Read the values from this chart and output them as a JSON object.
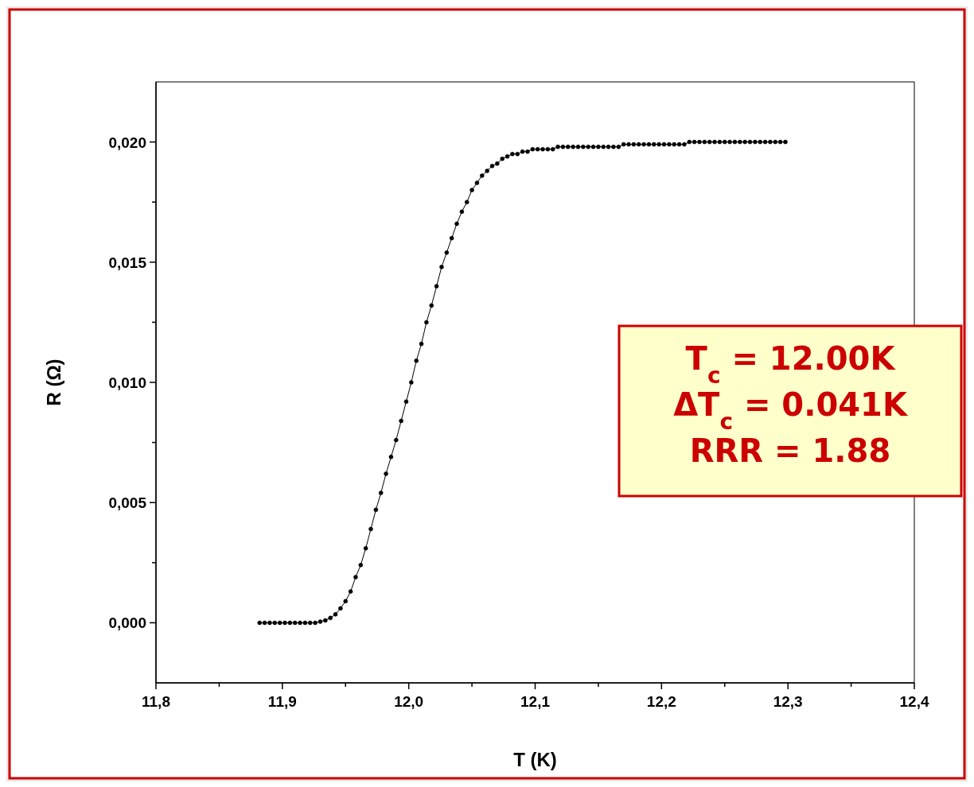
{
  "chart_data": {
    "type": "line",
    "xlabel": "T (K)",
    "ylabel": "R (Ω)",
    "marker": "circle",
    "line_style": "solid",
    "grid": false,
    "annotations": [
      "T$_{c}$ = 12.00K",
      "ΔT$_{c}$ = 0.041K",
      "RRR = 1.88"
    ],
    "xlim": [
      11.8,
      12.4
    ],
    "ylim": [
      -0.0025,
      0.0225
    ],
    "xticks": [
      {
        "value": 11.8,
        "label": "11,8"
      },
      {
        "value": 11.85,
        "label": null
      },
      {
        "value": 11.9,
        "label": "11,9"
      },
      {
        "value": 11.95,
        "label": null
      },
      {
        "value": 12.0,
        "label": "12,0"
      },
      {
        "value": 12.05,
        "label": null
      },
      {
        "value": 12.1,
        "label": "12,1"
      },
      {
        "value": 12.15,
        "label": null
      },
      {
        "value": 12.2,
        "label": "12,2"
      },
      {
        "value": 12.25,
        "label": null
      },
      {
        "value": 12.3,
        "label": "12,3"
      },
      {
        "value": 12.35,
        "label": null
      },
      {
        "value": 12.4,
        "label": "12,4"
      }
    ],
    "yticks": [
      {
        "value": 0,
        "label": "0,000"
      },
      {
        "value": 0.0025,
        "label": null
      },
      {
        "value": 0.005,
        "label": "0,005"
      },
      {
        "value": 0.0075,
        "label": null
      },
      {
        "value": 0.01,
        "label": "0,010"
      },
      {
        "value": 0.0125,
        "label": null
      },
      {
        "value": 0.015,
        "label": "0,015"
      },
      {
        "value": 0.0175,
        "label": null
      },
      {
        "value": 0.02,
        "label": "0,020"
      }
    ],
    "series": [
      {
        "color": "#000000",
        "x": [
          11.882,
          11.886,
          11.89,
          11.894,
          11.898,
          11.902,
          11.906,
          11.91,
          11.914,
          11.918,
          11.922,
          11.926,
          11.93,
          11.934,
          11.938,
          11.942,
          11.946,
          11.95,
          11.954,
          11.958,
          11.962,
          11.966,
          11.97,
          11.974,
          11.978,
          11.982,
          11.986,
          11.99,
          11.994,
          11.998,
          12.002,
          12.006,
          12.01,
          12.014,
          12.018,
          12.022,
          12.026,
          12.03,
          12.034,
          12.038,
          12.042,
          12.046,
          12.05,
          12.054,
          12.058,
          12.062,
          12.066,
          12.07,
          12.074,
          12.078,
          12.082,
          12.086,
          12.09,
          12.094,
          12.098,
          12.102,
          12.106,
          12.11,
          12.114,
          12.118,
          12.122,
          12.126,
          12.13,
          12.134,
          12.138,
          12.142,
          12.146,
          12.15,
          12.154,
          12.158,
          12.162,
          12.166,
          12.17,
          12.174,
          12.178,
          12.182,
          12.186,
          12.19,
          12.194,
          12.198,
          12.202,
          12.206,
          12.21,
          12.214,
          12.218,
          12.222,
          12.226,
          12.23,
          12.234,
          12.238,
          12.242,
          12.246,
          12.25,
          12.254,
          12.258,
          12.262,
          12.266,
          12.27,
          12.274,
          12.278,
          12.282,
          12.286,
          12.29,
          12.294,
          12.298
        ],
        "values": [
          0,
          0,
          0,
          0,
          0,
          0,
          0,
          0,
          0,
          0,
          0,
          0,
          5e-05,
          0.0001,
          0.0002,
          0.00035,
          0.0006,
          0.0009,
          0.0013,
          0.0019,
          0.0024,
          0.0031,
          0.0039,
          0.0047,
          0.0054,
          0.0062,
          0.0069,
          0.0076,
          0.0084,
          0.0092,
          0.01,
          0.0109,
          0.0116,
          0.0125,
          0.0132,
          0.014,
          0.0148,
          0.0154,
          0.016,
          0.0166,
          0.0171,
          0.0175,
          0.018,
          0.0183,
          0.0186,
          0.0188,
          0.019,
          0.0191,
          0.0193,
          0.0194,
          0.0195,
          0.0195,
          0.0196,
          0.0196,
          0.0197,
          0.0197,
          0.0197,
          0.0197,
          0.0197,
          0.0198,
          0.0198,
          0.0198,
          0.0198,
          0.0198,
          0.0198,
          0.0198,
          0.0198,
          0.0198,
          0.0198,
          0.0198,
          0.0198,
          0.0198,
          0.0199,
          0.0199,
          0.0199,
          0.0199,
          0.0199,
          0.0199,
          0.0199,
          0.0199,
          0.0199,
          0.0199,
          0.0199,
          0.0199,
          0.0199,
          0.02,
          0.02,
          0.02,
          0.02,
          0.02,
          0.02,
          0.02,
          0.02,
          0.02,
          0.02,
          0.02,
          0.02,
          0.02,
          0.02,
          0.02,
          0.02,
          0.02,
          0.02,
          0.02,
          0.02
        ]
      }
    ]
  }
}
